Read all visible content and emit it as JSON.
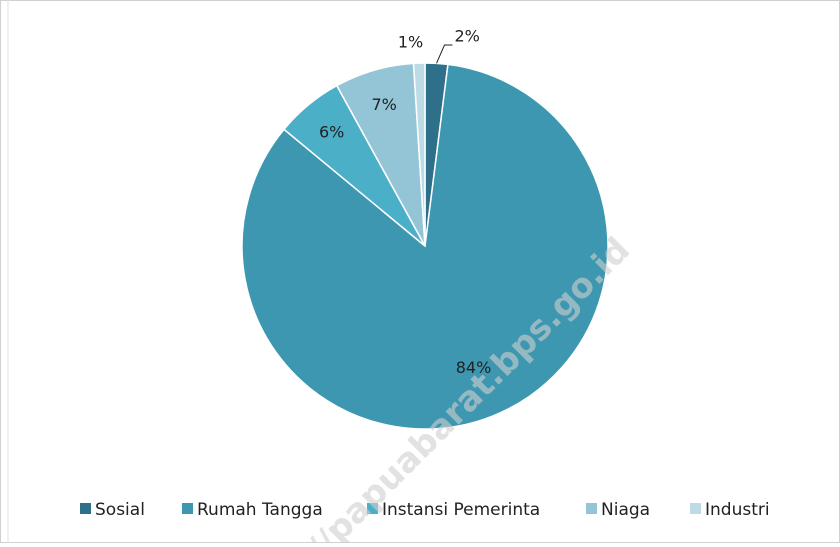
{
  "chart_data": {
    "type": "pie",
    "categories": [
      "Sosial",
      "Rumah Tangga",
      "Instansi Pemerinta",
      "Niaga",
      "Industri"
    ],
    "values": [
      2,
      84,
      6,
      7,
      1
    ],
    "value_labels": [
      "2%",
      "84%",
      "6%",
      "7%",
      "1%"
    ],
    "colors": [
      "#2e6f8a",
      "#3e97b0",
      "#4bafc8",
      "#93c5d6",
      "#bcdbe6"
    ],
    "legend": "bottom",
    "watermark": "//papuabarat.bps.go.id"
  }
}
